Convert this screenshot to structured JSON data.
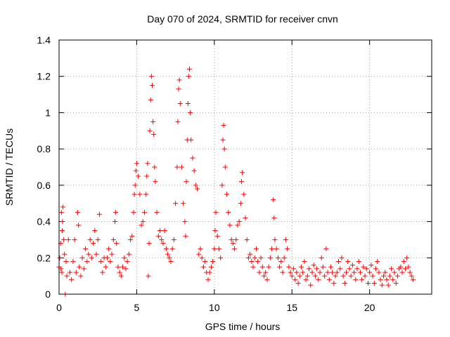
{
  "chart_data": {
    "type": "scatter",
    "title": "Day 070 of 2024, SRMTID for receiver cnvn",
    "xlabel": "GPS time / hours",
    "ylabel": "SRMTID / TECUs",
    "xlim": [
      0,
      24
    ],
    "ylim": [
      0,
      1.4
    ],
    "x_ticks": [
      0,
      5,
      10,
      15,
      20
    ],
    "y_ticks": [
      0,
      0.2,
      0.4,
      0.6,
      0.8,
      1,
      1.2,
      1.4
    ],
    "x_tick_labels": [
      "0",
      "5",
      "10",
      "15",
      "20"
    ],
    "y_tick_labels": [
      "0",
      "0.2",
      "0.4",
      "0.6",
      "0.8",
      "1",
      "1.2",
      "1.4"
    ],
    "grid": true,
    "marker": "plus",
    "color": "#ff0000",
    "series": [
      {
        "name": "SRMTID",
        "points": [
          [
            0.0,
            0.15
          ],
          [
            0.05,
            0.2
          ],
          [
            0.1,
            0.28
          ],
          [
            0.12,
            0.14
          ],
          [
            0.15,
            0.45
          ],
          [
            0.18,
            0.12
          ],
          [
            0.2,
            0.35
          ],
          [
            0.22,
            0.4
          ],
          [
            0.25,
            0.48
          ],
          [
            0.3,
            0.3
          ],
          [
            0.35,
            0.22
          ],
          [
            0.4,
            0.0
          ],
          [
            0.45,
            0.18
          ],
          [
            0.5,
            0.1
          ],
          [
            0.6,
            0.3
          ],
          [
            0.7,
            0.12
          ],
          [
            0.8,
            0.08
          ],
          [
            0.9,
            0.18
          ],
          [
            1.0,
            0.3
          ],
          [
            1.1,
            0.12
          ],
          [
            1.2,
            0.45
          ],
          [
            1.25,
            0.38
          ],
          [
            1.3,
            0.15
          ],
          [
            1.4,
            0.1
          ],
          [
            1.5,
            0.2
          ],
          [
            1.6,
            0.14
          ],
          [
            1.7,
            0.25
          ],
          [
            1.8,
            0.18
          ],
          [
            1.9,
            0.22
          ],
          [
            2.0,
            0.3
          ],
          [
            2.1,
            0.2
          ],
          [
            2.2,
            0.28
          ],
          [
            2.3,
            0.35
          ],
          [
            2.4,
            0.22
          ],
          [
            2.5,
            0.3
          ],
          [
            2.6,
            0.44
          ],
          [
            2.7,
            0.18
          ],
          [
            2.8,
            0.12
          ],
          [
            2.9,
            0.2
          ],
          [
            3.0,
            0.15
          ],
          [
            3.1,
            0.2
          ],
          [
            3.2,
            0.25
          ],
          [
            3.3,
            0.18
          ],
          [
            3.4,
            0.22
          ],
          [
            3.5,
            0.3
          ],
          [
            3.6,
            0.4
          ],
          [
            3.65,
            0.45
          ],
          [
            3.7,
            0.28
          ],
          [
            3.8,
            0.15
          ],
          [
            3.9,
            0.12
          ],
          [
            4.0,
            0.1
          ],
          [
            4.1,
            0.15
          ],
          [
            4.2,
            0.2
          ],
          [
            4.3,
            0.14
          ],
          [
            4.4,
            0.18
          ],
          [
            4.5,
            0.22
          ],
          [
            4.6,
            0.3
          ],
          [
            4.7,
            0.32
          ],
          [
            4.8,
            0.45
          ],
          [
            4.85,
            0.55
          ],
          [
            4.9,
            0.6
          ],
          [
            4.95,
            0.68
          ],
          [
            5.0,
            0.72
          ],
          [
            5.1,
            0.65
          ],
          [
            5.2,
            0.55
          ],
          [
            5.3,
            0.38
          ],
          [
            5.4,
            0.4
          ],
          [
            5.5,
            0.45
          ],
          [
            5.6,
            0.55
          ],
          [
            5.65,
            0.65
          ],
          [
            5.7,
            0.72
          ],
          [
            5.75,
            0.1
          ],
          [
            5.8,
            0.28
          ],
          [
            5.85,
            0.9
          ],
          [
            5.9,
            1.07
          ],
          [
            5.95,
            1.2
          ],
          [
            6.0,
            1.15
          ],
          [
            6.05,
            0.95
          ],
          [
            6.1,
            0.88
          ],
          [
            6.15,
            0.7
          ],
          [
            6.2,
            0.62
          ],
          [
            6.3,
            0.45
          ],
          [
            6.4,
            0.32
          ],
          [
            6.5,
            0.35
          ],
          [
            6.6,
            0.3
          ],
          [
            6.7,
            0.28
          ],
          [
            6.8,
            0.35
          ],
          [
            6.9,
            0.25
          ],
          [
            7.0,
            0.22
          ],
          [
            7.1,
            0.2
          ],
          [
            7.2,
            0.18
          ],
          [
            7.3,
            0.25
          ],
          [
            7.4,
            0.3
          ],
          [
            7.5,
            0.5
          ],
          [
            7.6,
            0.7
          ],
          [
            7.65,
            0.95
          ],
          [
            7.7,
            1.13
          ],
          [
            7.75,
            1.18
          ],
          [
            7.8,
            1.05
          ],
          [
            7.9,
            0.7
          ],
          [
            8.0,
            0.5
          ],
          [
            8.1,
            0.4
          ],
          [
            8.15,
            0.32
          ],
          [
            8.2,
            0.62
          ],
          [
            8.25,
            0.85
          ],
          [
            8.3,
            1.05
          ],
          [
            8.35,
            1.2
          ],
          [
            8.4,
            1.24
          ],
          [
            8.45,
            1.0
          ],
          [
            8.5,
            0.85
          ],
          [
            8.6,
            0.75
          ],
          [
            8.7,
            0.68
          ],
          [
            8.8,
            0.6
          ],
          [
            8.9,
            0.58
          ],
          [
            9.0,
            0.22
          ],
          [
            9.1,
            0.25
          ],
          [
            9.2,
            0.2
          ],
          [
            9.3,
            0.15
          ],
          [
            9.4,
            0.18
          ],
          [
            9.5,
            0.12
          ],
          [
            9.6,
            0.08
          ],
          [
            9.7,
            0.12
          ],
          [
            9.8,
            0.15
          ],
          [
            9.9,
            0.18
          ],
          [
            10.0,
            0.25
          ],
          [
            10.05,
            0.35
          ],
          [
            10.1,
            0.45
          ],
          [
            10.2,
            0.32
          ],
          [
            10.3,
            0.25
          ],
          [
            10.4,
            0.2
          ],
          [
            10.5,
            0.6
          ],
          [
            10.55,
            0.85
          ],
          [
            10.6,
            0.93
          ],
          [
            10.65,
            0.8
          ],
          [
            10.7,
            0.7
          ],
          [
            10.8,
            0.55
          ],
          [
            10.9,
            0.45
          ],
          [
            11.0,
            0.38
          ],
          [
            11.1,
            0.3
          ],
          [
            11.2,
            0.28
          ],
          [
            11.3,
            0.25
          ],
          [
            11.4,
            0.3
          ],
          [
            11.5,
            0.38
          ],
          [
            11.6,
            0.4
          ],
          [
            11.7,
            0.5
          ],
          [
            11.75,
            0.62
          ],
          [
            11.8,
            0.67
          ],
          [
            11.9,
            0.55
          ],
          [
            12.0,
            0.42
          ],
          [
            12.1,
            0.3
          ],
          [
            12.2,
            0.2
          ],
          [
            12.3,
            0.22
          ],
          [
            12.4,
            0.18
          ],
          [
            12.5,
            0.15
          ],
          [
            12.6,
            0.2
          ],
          [
            12.7,
            0.25
          ],
          [
            12.8,
            0.18
          ],
          [
            12.9,
            0.12
          ],
          [
            13.0,
            0.2
          ],
          [
            13.1,
            0.15
          ],
          [
            13.2,
            0.1
          ],
          [
            13.3,
            0.12
          ],
          [
            13.4,
            0.08
          ],
          [
            13.5,
            0.15
          ],
          [
            13.6,
            0.2
          ],
          [
            13.7,
            0.25
          ],
          [
            13.8,
            0.52
          ],
          [
            13.85,
            0.42
          ],
          [
            13.9,
            0.3
          ],
          [
            14.0,
            0.25
          ],
          [
            14.1,
            0.2
          ],
          [
            14.2,
            0.15
          ],
          [
            14.3,
            0.18
          ],
          [
            14.4,
            0.12
          ],
          [
            14.5,
            0.2
          ],
          [
            14.6,
            0.3
          ],
          [
            14.7,
            0.25
          ],
          [
            14.8,
            0.15
          ],
          [
            14.9,
            0.12
          ],
          [
            15.0,
            0.1
          ],
          [
            15.1,
            0.14
          ],
          [
            15.2,
            0.08
          ],
          [
            15.3,
            0.12
          ],
          [
            15.4,
            0.06
          ],
          [
            15.5,
            0.1
          ],
          [
            15.6,
            0.15
          ],
          [
            15.7,
            0.12
          ],
          [
            15.8,
            0.18
          ],
          [
            15.9,
            0.08
          ],
          [
            16.0,
            0.1
          ],
          [
            16.1,
            0.14
          ],
          [
            16.2,
            0.05
          ],
          [
            16.3,
            0.12
          ],
          [
            16.4,
            0.16
          ],
          [
            16.5,
            0.1
          ],
          [
            16.6,
            0.14
          ],
          [
            16.7,
            0.08
          ],
          [
            16.8,
            0.12
          ],
          [
            16.9,
            0.2
          ],
          [
            17.0,
            0.15
          ],
          [
            17.1,
            0.1
          ],
          [
            17.2,
            0.25
          ],
          [
            17.3,
            0.12
          ],
          [
            17.4,
            0.08
          ],
          [
            17.5,
            0.15
          ],
          [
            17.6,
            0.12
          ],
          [
            17.7,
            0.06
          ],
          [
            17.8,
            0.1
          ],
          [
            17.9,
            0.12
          ],
          [
            18.0,
            0.18
          ],
          [
            18.1,
            0.14
          ],
          [
            18.2,
            0.2
          ],
          [
            18.3,
            0.1
          ],
          [
            18.4,
            0.06
          ],
          [
            18.5,
            0.12
          ],
          [
            18.6,
            0.18
          ],
          [
            18.7,
            0.14
          ],
          [
            18.8,
            0.1
          ],
          [
            18.9,
            0.16
          ],
          [
            19.0,
            0.12
          ],
          [
            19.1,
            0.08
          ],
          [
            19.2,
            0.14
          ],
          [
            19.3,
            0.18
          ],
          [
            19.4,
            0.12
          ],
          [
            19.5,
            0.08
          ],
          [
            19.6,
            0.15
          ],
          [
            19.7,
            0.1
          ],
          [
            19.8,
            0.14
          ],
          [
            19.9,
            0.06
          ],
          [
            20.0,
            0.12
          ],
          [
            20.1,
            0.16
          ],
          [
            20.2,
            0.1
          ],
          [
            20.3,
            0.06
          ],
          [
            20.4,
            0.14
          ],
          [
            20.5,
            0.18
          ],
          [
            20.6,
            0.12
          ],
          [
            20.7,
            0.08
          ],
          [
            20.8,
            0.05
          ],
          [
            20.9,
            0.1
          ],
          [
            21.0,
            0.12
          ],
          [
            21.1,
            0.08
          ],
          [
            21.2,
            0.05
          ],
          [
            21.3,
            0.1
          ],
          [
            21.4,
            0.14
          ],
          [
            21.5,
            0.08
          ],
          [
            21.6,
            0.12
          ],
          [
            21.7,
            0.06
          ],
          [
            21.8,
            0.1
          ],
          [
            21.9,
            0.14
          ],
          [
            22.0,
            0.15
          ],
          [
            22.1,
            0.12
          ],
          [
            22.2,
            0.18
          ],
          [
            22.3,
            0.14
          ],
          [
            22.4,
            0.2
          ],
          [
            22.5,
            0.15
          ],
          [
            22.6,
            0.12
          ],
          [
            22.7,
            0.1
          ],
          [
            22.8,
            0.08
          ]
        ]
      }
    ]
  }
}
